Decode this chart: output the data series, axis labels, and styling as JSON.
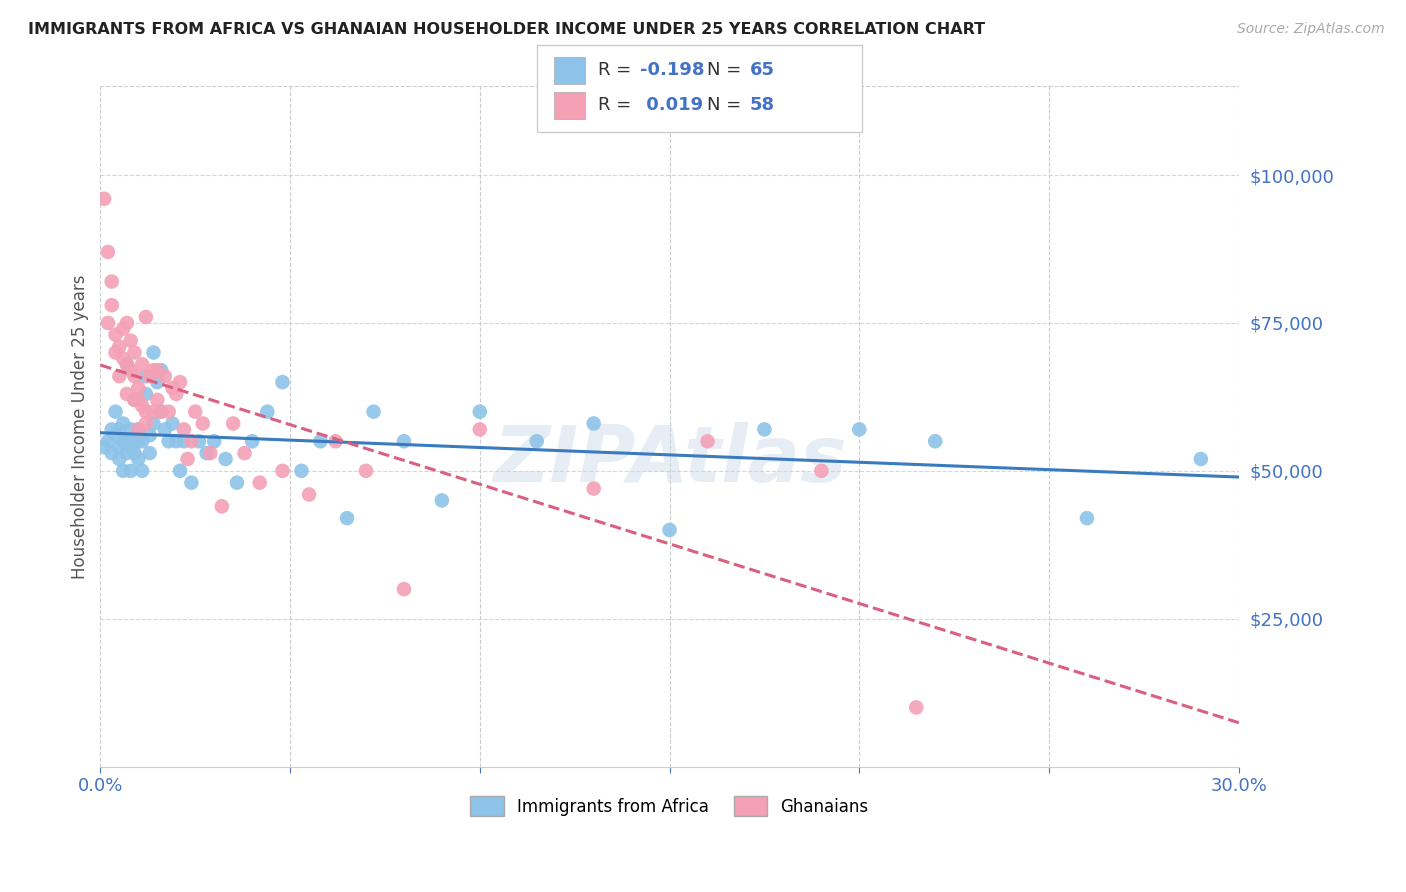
{
  "title": "IMMIGRANTS FROM AFRICA VS GHANAIAN HOUSEHOLDER INCOME UNDER 25 YEARS CORRELATION CHART",
  "source": "Source: ZipAtlas.com",
  "ylabel": "Householder Income Under 25 years",
  "xlim": [
    0.0,
    0.3
  ],
  "ylim": [
    0,
    115000
  ],
  "yticks": [
    25000,
    50000,
    75000,
    100000
  ],
  "ytick_labels": [
    "$25,000",
    "$50,000",
    "$75,000",
    "$100,000"
  ],
  "xticks": [
    0.0,
    0.05,
    0.1,
    0.15,
    0.2,
    0.25,
    0.3
  ],
  "xtick_labels": [
    "0.0%",
    "",
    "",
    "",
    "",
    "",
    "30.0%"
  ],
  "color_blue": "#8dc3e8",
  "color_pink": "#f4a0b5",
  "color_blue_line": "#3a7abf",
  "color_pink_line": "#d96080",
  "color_axis_labels": "#4472c4",
  "watermark": "ZIPAtlas",
  "blue_scatter_x": [
    0.001,
    0.002,
    0.003,
    0.003,
    0.004,
    0.004,
    0.005,
    0.005,
    0.005,
    0.006,
    0.006,
    0.006,
    0.007,
    0.007,
    0.007,
    0.008,
    0.008,
    0.008,
    0.009,
    0.009,
    0.009,
    0.01,
    0.01,
    0.01,
    0.011,
    0.011,
    0.012,
    0.012,
    0.013,
    0.013,
    0.014,
    0.014,
    0.015,
    0.016,
    0.016,
    0.017,
    0.018,
    0.019,
    0.02,
    0.021,
    0.022,
    0.024,
    0.026,
    0.028,
    0.03,
    0.033,
    0.036,
    0.04,
    0.044,
    0.048,
    0.053,
    0.058,
    0.065,
    0.072,
    0.08,
    0.09,
    0.1,
    0.115,
    0.13,
    0.15,
    0.175,
    0.2,
    0.22,
    0.26,
    0.29
  ],
  "blue_scatter_y": [
    54000,
    55000,
    53000,
    57000,
    56000,
    60000,
    54000,
    57000,
    52000,
    55000,
    58000,
    50000,
    55000,
    53000,
    68000,
    54000,
    57000,
    50000,
    55000,
    53000,
    62000,
    55000,
    52000,
    57000,
    55000,
    50000,
    66000,
    63000,
    56000,
    53000,
    70000,
    58000,
    65000,
    67000,
    60000,
    57000,
    55000,
    58000,
    55000,
    50000,
    55000,
    48000,
    55000,
    53000,
    55000,
    52000,
    48000,
    55000,
    60000,
    65000,
    50000,
    55000,
    42000,
    60000,
    55000,
    45000,
    60000,
    55000,
    58000,
    40000,
    57000,
    57000,
    55000,
    42000,
    52000
  ],
  "pink_scatter_x": [
    0.001,
    0.002,
    0.002,
    0.003,
    0.003,
    0.004,
    0.004,
    0.005,
    0.005,
    0.006,
    0.006,
    0.007,
    0.007,
    0.007,
    0.008,
    0.008,
    0.009,
    0.009,
    0.009,
    0.01,
    0.01,
    0.01,
    0.011,
    0.011,
    0.012,
    0.012,
    0.012,
    0.013,
    0.014,
    0.014,
    0.015,
    0.015,
    0.016,
    0.017,
    0.018,
    0.019,
    0.02,
    0.021,
    0.022,
    0.023,
    0.024,
    0.025,
    0.027,
    0.029,
    0.032,
    0.035,
    0.038,
    0.042,
    0.048,
    0.055,
    0.062,
    0.07,
    0.08,
    0.1,
    0.13,
    0.16,
    0.19,
    0.215
  ],
  "pink_scatter_y": [
    96000,
    87000,
    75000,
    78000,
    82000,
    73000,
    70000,
    71000,
    66000,
    74000,
    69000,
    75000,
    68000,
    63000,
    67000,
    72000,
    66000,
    62000,
    70000,
    64000,
    57000,
    62000,
    68000,
    61000,
    60000,
    76000,
    58000,
    66000,
    67000,
    60000,
    62000,
    67000,
    60000,
    66000,
    60000,
    64000,
    63000,
    65000,
    57000,
    52000,
    55000,
    60000,
    58000,
    53000,
    44000,
    58000,
    53000,
    48000,
    50000,
    46000,
    55000,
    50000,
    30000,
    57000,
    47000,
    55000,
    50000,
    10000
  ]
}
